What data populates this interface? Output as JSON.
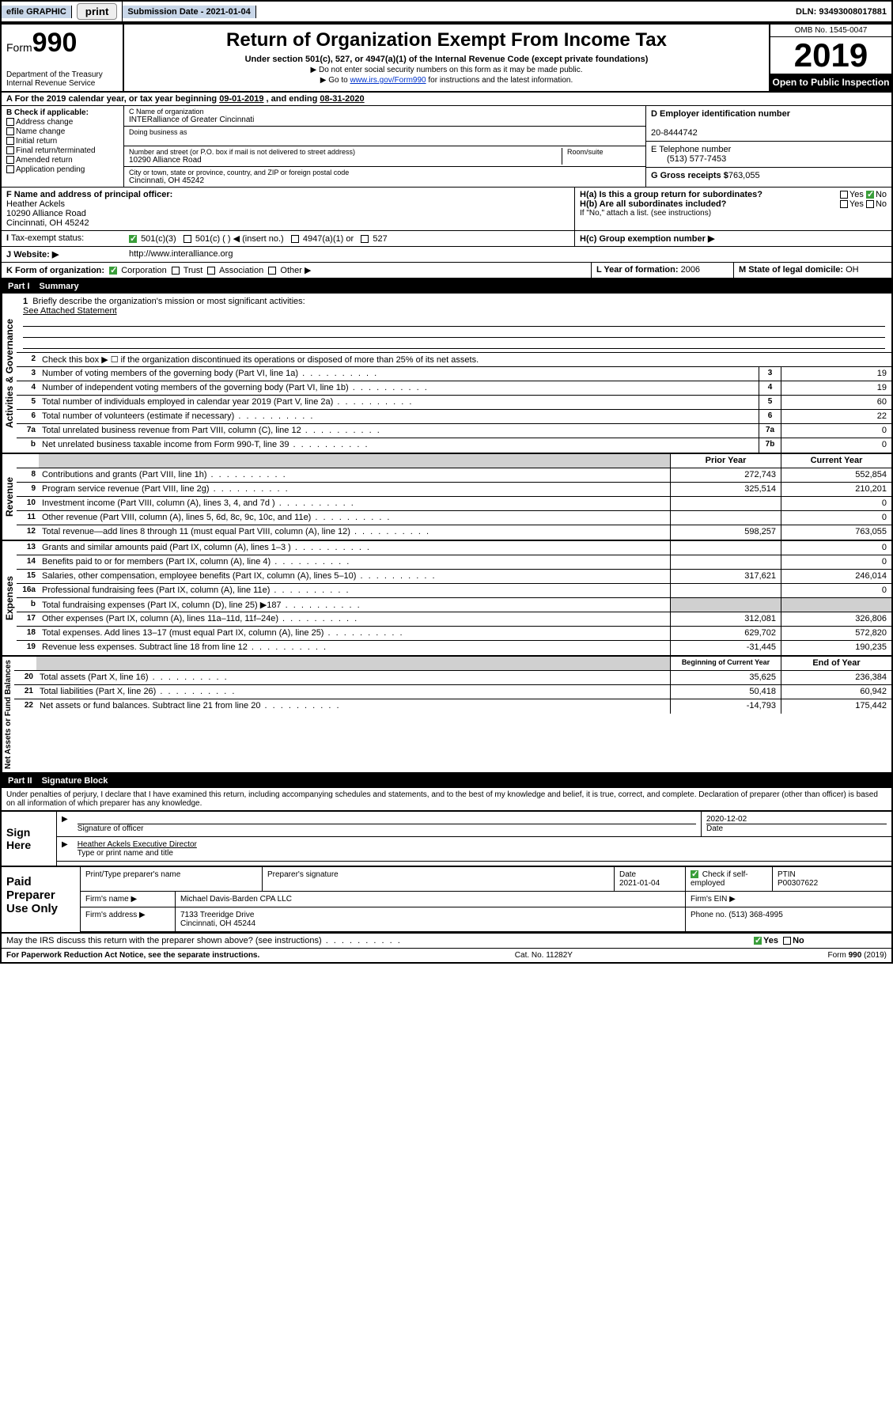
{
  "topbar": {
    "efile": "efile GRAPHIC",
    "print": "print",
    "subdate_label": "Submission Date - 2021-01-04",
    "dln": "DLN: 93493008017881"
  },
  "header": {
    "form_label": "Form",
    "form_number": "990",
    "dept": "Department of the Treasury",
    "irs": "Internal Revenue Service",
    "title": "Return of Organization Exempt From Income Tax",
    "subtitle": "Under section 501(c), 527, or 4947(a)(1) of the Internal Revenue Code (except private foundations)",
    "note1": "▶ Do not enter social security numbers on this form as it may be made public.",
    "note2_pre": "▶ Go to ",
    "note2_link": "www.irs.gov/Form990",
    "note2_post": " for instructions and the latest information.",
    "omb": "OMB No. 1545-0047",
    "year": "2019",
    "inspect": "Open to Public Inspection"
  },
  "rowA": {
    "text_pre": "A  For the 2019 calendar year, or tax year beginning ",
    "begin": "09-01-2019",
    "mid": "   , and ending ",
    "end": "08-31-2020"
  },
  "boxB": {
    "title": "B Check if applicable:",
    "opts": [
      "Address change",
      "Name change",
      "Initial return",
      "Final return/terminated",
      "Amended return",
      "Application pending"
    ]
  },
  "boxC": {
    "name_label": "C Name of organization",
    "name": "INTERalliance of Greater Cincinnati",
    "dba_label": "Doing business as",
    "addr_label": "Number and street (or P.O. box if mail is not delivered to street address)",
    "room_label": "Room/suite",
    "addr": "10290 Alliance Road",
    "city_label": "City or town, state or province, country, and ZIP or foreign postal code",
    "city": "Cincinnati, OH  45242"
  },
  "boxD": {
    "label": "D Employer identification number",
    "value": "20-8444742"
  },
  "boxE": {
    "label": "E Telephone number",
    "value": "(513) 577-7453"
  },
  "boxG": {
    "label": "G Gross receipts $",
    "value": "763,055"
  },
  "boxF": {
    "label": "F  Name and address of principal officer:",
    "name": "Heather Ackels",
    "addr1": "10290 Alliance Road",
    "addr2": "Cincinnati, OH  45242"
  },
  "boxH": {
    "a": "H(a)  Is this a group return for subordinates?",
    "b": "H(b)  Are all subordinates included?",
    "note": "If \"No,\" attach a list. (see instructions)",
    "c": "H(c)  Group exemption number ▶"
  },
  "rowI": {
    "label": "Tax-exempt status:",
    "opts": [
      "501(c)(3)",
      "501(c) (   ) ◀ (insert no.)",
      "4947(a)(1) or",
      "527"
    ]
  },
  "rowJ": {
    "label": "Website: ▶",
    "value": "http://www.interalliance.org"
  },
  "rowK": {
    "label": "K Form of organization:",
    "opts": [
      "Corporation",
      "Trust",
      "Association",
      "Other ▶"
    ],
    "L_label": "L Year of formation:",
    "L_val": "2006",
    "M_label": "M State of legal domicile:",
    "M_val": "OH"
  },
  "partI": {
    "num": "Part I",
    "title": "Summary"
  },
  "sectA": {
    "label": "Activities & Governance",
    "l1": "Briefly describe the organization's mission or most significant activities:",
    "l1_val": "See Attached Statement",
    "l2": "Check this box ▶ ☐  if the organization discontinued its operations or disposed of more than 25% of its net assets.",
    "lines": [
      {
        "n": "3",
        "d": "Number of voting members of the governing body (Part VI, line 1a)",
        "box": "3",
        "v": "19"
      },
      {
        "n": "4",
        "d": "Number of independent voting members of the governing body (Part VI, line 1b)",
        "box": "4",
        "v": "19"
      },
      {
        "n": "5",
        "d": "Total number of individuals employed in calendar year 2019 (Part V, line 2a)",
        "box": "5",
        "v": "60"
      },
      {
        "n": "6",
        "d": "Total number of volunteers (estimate if necessary)",
        "box": "6",
        "v": "22"
      },
      {
        "n": "7a",
        "d": "Total unrelated business revenue from Part VIII, column (C), line 12",
        "box": "7a",
        "v": "0"
      },
      {
        "n": "b",
        "d": "Net unrelated business taxable income from Form 990-T, line 39",
        "box": "7b",
        "v": "0"
      }
    ]
  },
  "colhdr": {
    "prior": "Prior Year",
    "current": "Current Year",
    "begin": "Beginning of Current Year",
    "end": "End of Year"
  },
  "sectRev": {
    "label": "Revenue",
    "lines": [
      {
        "n": "8",
        "d": "Contributions and grants (Part VIII, line 1h)",
        "p": "272,743",
        "c": "552,854"
      },
      {
        "n": "9",
        "d": "Program service revenue (Part VIII, line 2g)",
        "p": "325,514",
        "c": "210,201"
      },
      {
        "n": "10",
        "d": "Investment income (Part VIII, column (A), lines 3, 4, and 7d )",
        "p": "",
        "c": "0"
      },
      {
        "n": "11",
        "d": "Other revenue (Part VIII, column (A), lines 5, 6d, 8c, 9c, 10c, and 11e)",
        "p": "",
        "c": "0"
      },
      {
        "n": "12",
        "d": "Total revenue—add lines 8 through 11 (must equal Part VIII, column (A), line 12)",
        "p": "598,257",
        "c": "763,055"
      }
    ]
  },
  "sectExp": {
    "label": "Expenses",
    "lines": [
      {
        "n": "13",
        "d": "Grants and similar amounts paid (Part IX, column (A), lines 1–3 )",
        "p": "",
        "c": "0"
      },
      {
        "n": "14",
        "d": "Benefits paid to or for members (Part IX, column (A), line 4)",
        "p": "",
        "c": "0"
      },
      {
        "n": "15",
        "d": "Salaries, other compensation, employee benefits (Part IX, column (A), lines 5–10)",
        "p": "317,621",
        "c": "246,014"
      },
      {
        "n": "16a",
        "d": "Professional fundraising fees (Part IX, column (A), line 11e)",
        "p": "",
        "c": "0"
      },
      {
        "n": "b",
        "d": "Total fundraising expenses (Part IX, column (D), line 25) ▶187",
        "p": "shade",
        "c": "shade"
      },
      {
        "n": "17",
        "d": "Other expenses (Part IX, column (A), lines 11a–11d, 11f–24e)",
        "p": "312,081",
        "c": "326,806"
      },
      {
        "n": "18",
        "d": "Total expenses. Add lines 13–17 (must equal Part IX, column (A), line 25)",
        "p": "629,702",
        "c": "572,820"
      },
      {
        "n": "19",
        "d": "Revenue less expenses. Subtract line 18 from line 12",
        "p": "-31,445",
        "c": "190,235"
      }
    ]
  },
  "sectNet": {
    "label": "Net Assets or Fund Balances",
    "lines": [
      {
        "n": "20",
        "d": "Total assets (Part X, line 16)",
        "p": "35,625",
        "c": "236,384"
      },
      {
        "n": "21",
        "d": "Total liabilities (Part X, line 26)",
        "p": "50,418",
        "c": "60,942"
      },
      {
        "n": "22",
        "d": "Net assets or fund balances. Subtract line 21 from line 20",
        "p": "-14,793",
        "c": "175,442"
      }
    ]
  },
  "partII": {
    "num": "Part II",
    "title": "Signature Block"
  },
  "perjury": "Under penalties of perjury, I declare that I have examined this return, including accompanying schedules and statements, and to the best of my knowledge and belief, it is true, correct, and complete. Declaration of preparer (other than officer) is based on all information of which preparer has any knowledge.",
  "sign": {
    "here": "Sign Here",
    "sig_label": "Signature of officer",
    "date": "2020-12-02",
    "date_label": "Date",
    "name": "Heather Ackels  Executive Director",
    "name_label": "Type or print name and title"
  },
  "prep": {
    "label": "Paid Preparer Use Only",
    "r1": {
      "a": "Print/Type preparer's name",
      "b": "Preparer's signature",
      "c_label": "Date",
      "c": "2021-01-04",
      "d": "Check ☑ if self-employed",
      "e_label": "PTIN",
      "e": "P00307622"
    },
    "r2": {
      "a": "Firm's name      ▶",
      "b": "Michael Davis-Barden CPA LLC",
      "c": "Firm's EIN ▶"
    },
    "r3": {
      "a": "Firm's address ▶",
      "b": "7133 Treeridge Drive",
      "c": "Phone no. (513) 368-4995"
    },
    "r3b": "Cincinnati, OH  45244"
  },
  "discuss": "May the IRS discuss this return with the preparer shown above? (see instructions)",
  "footer": {
    "pra": "For Paperwork Reduction Act Notice, see the separate instructions.",
    "cat": "Cat. No. 11282Y",
    "form": "Form 990 (2019)"
  },
  "yesno": {
    "yes": "Yes",
    "no": "No"
  }
}
